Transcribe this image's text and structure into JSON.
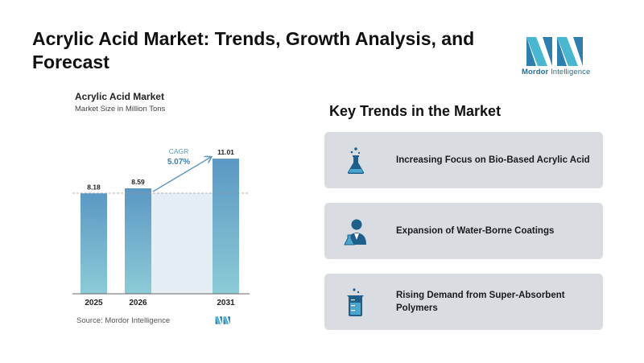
{
  "header": {
    "title": "Acrylic Acid Market: Trends, Growth Analysis, and Forecast",
    "logo_text_bold": "Mordor",
    "logo_text_rest": " Intelligence"
  },
  "chart_data": {
    "type": "bar",
    "title": "Acrylic Acid Market",
    "subtitle": "Market Size in Million Tons",
    "categories": [
      "2025",
      "2026",
      "2031"
    ],
    "values": [
      8.18,
      8.59,
      11.01
    ],
    "data_labels": [
      "8.18",
      "8.59",
      "11.01"
    ],
    "cagr_label": "CAGR",
    "cagr_value": "5.07%",
    "ylim": [
      0,
      12
    ],
    "bar_colors": [
      "#5b98c4",
      "#8ccbd6"
    ],
    "source": "Source: Mordor Intelligence"
  },
  "trends": {
    "title": "Key Trends in the Market",
    "items": [
      {
        "label": "Increasing Focus on Bio-Based Acrylic Acid",
        "icon": "flask-icon"
      },
      {
        "label": "Expansion of Water-Borne Coatings",
        "icon": "scientist-icon"
      },
      {
        "label": "Rising Demand from Super-Absorbent Polymers",
        "icon": "beaker-icon"
      }
    ]
  },
  "colors": {
    "icon_blue": "#1f5f8b",
    "card_bg": "#d9dde2",
    "accent": "#2a6f8f"
  }
}
